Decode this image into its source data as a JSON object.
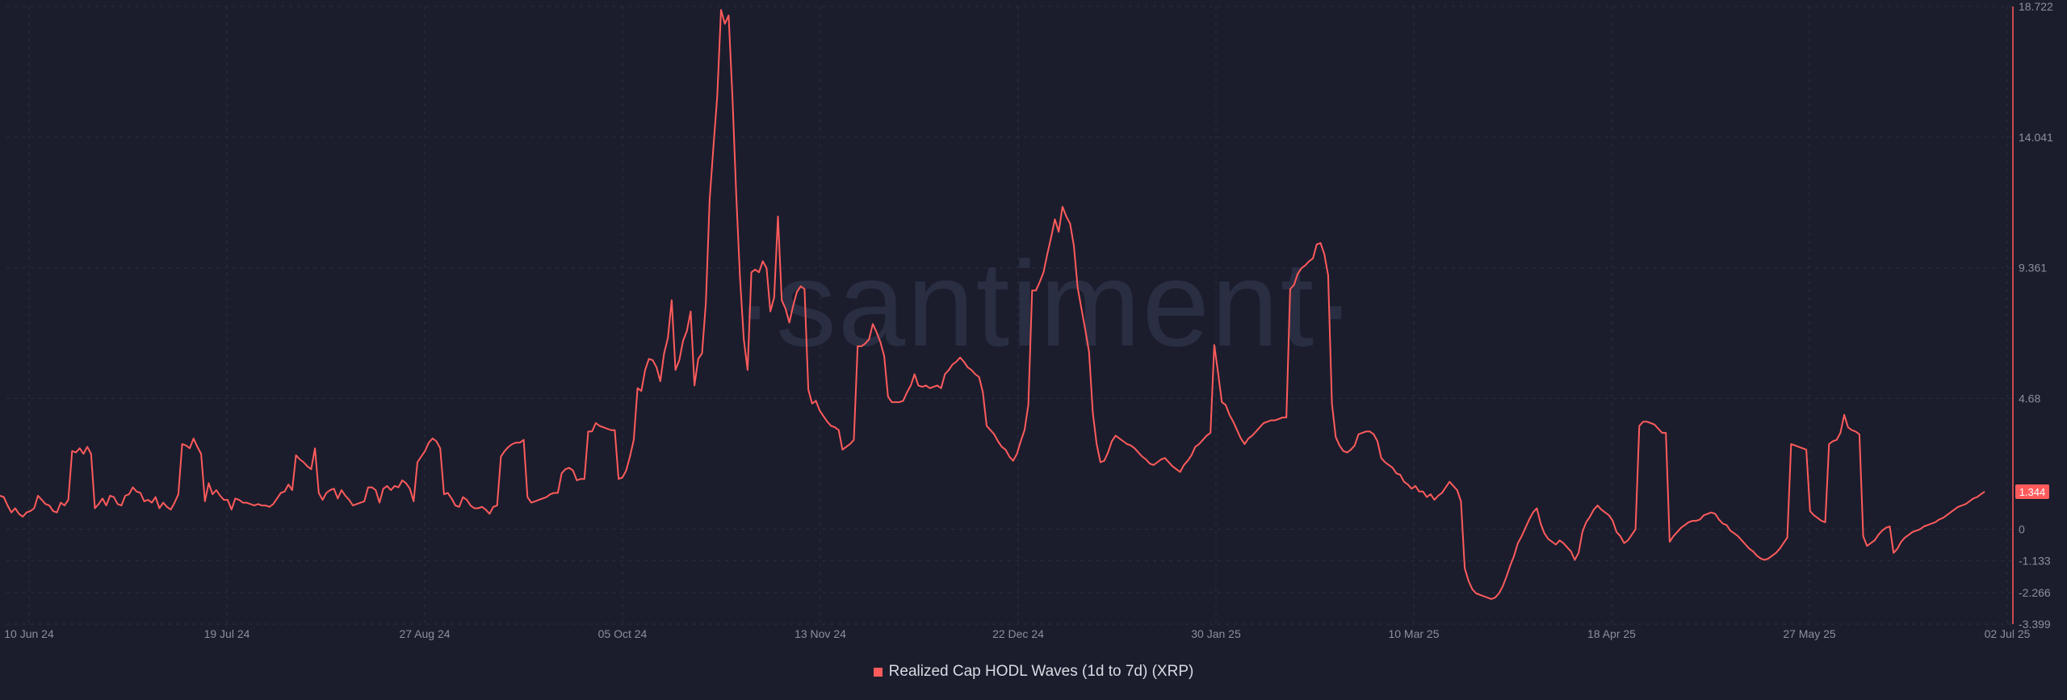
{
  "watermark": "·santiment·",
  "chart_data": {
    "type": "line",
    "title": "",
    "xlabel": "",
    "ylabel": "",
    "ylim": [
      -3.399,
      18.722
    ],
    "y_ticks": [
      "18.722",
      "14.041",
      "9.361",
      "4.68",
      "0",
      "-1.133",
      "-2.266",
      "-3.399"
    ],
    "x_ticks": [
      "10 Jun 24",
      "19 Jul 24",
      "27 Aug 24",
      "05 Oct 24",
      "13 Nov 24",
      "22 Dec 24",
      "30 Jan 25",
      "10 Mar 25",
      "18 Apr 25",
      "27 May 25",
      "02 Jul 25"
    ],
    "current_value_label": "1.344",
    "grid": true,
    "legend_position": "bottom-center",
    "series": [
      {
        "name": "Realized Cap HODL Waves (1d to 7d) (XRP)",
        "color": "#ff5b5b",
        "x_start": "2024-06-10",
        "x_end": "2025-07-02",
        "values": [
          1.2,
          1.15,
          0.85,
          0.6,
          0.75,
          0.55,
          0.45,
          0.6,
          0.65,
          0.75,
          1.2,
          1.05,
          0.9,
          0.85,
          0.65,
          0.6,
          0.95,
          0.85,
          1.05,
          2.8,
          2.75,
          2.9,
          2.7,
          2.95,
          2.7,
          0.75,
          0.9,
          1.1,
          0.85,
          1.2,
          1.15,
          0.9,
          0.85,
          1.2,
          1.25,
          1.5,
          1.35,
          1.3,
          1.0,
          1.05,
          0.95,
          1.15,
          0.75,
          0.95,
          0.8,
          0.7,
          0.95,
          1.25,
          3.05,
          3.0,
          2.9,
          3.25,
          2.95,
          2.7,
          1.0,
          1.65,
          1.25,
          1.4,
          1.2,
          1.05,
          1.05,
          0.7,
          1.1,
          1.05,
          0.95,
          0.95,
          0.9,
          0.85,
          0.9,
          0.85,
          0.85,
          0.8,
          0.9,
          1.1,
          1.3,
          1.35,
          1.6,
          1.4,
          2.65,
          2.5,
          2.4,
          2.25,
          2.15,
          2.9,
          1.3,
          1.05,
          1.3,
          1.4,
          1.45,
          1.1,
          1.4,
          1.2,
          1.05,
          0.85,
          0.9,
          0.95,
          1.0,
          1.5,
          1.5,
          1.4,
          0.95,
          1.45,
          1.55,
          1.4,
          1.55,
          1.5,
          1.75,
          1.65,
          1.45,
          1.0,
          2.4,
          2.6,
          2.8,
          3.1,
          3.25,
          3.15,
          2.9,
          1.25,
          1.3,
          1.1,
          0.85,
          0.8,
          1.15,
          1.05,
          0.85,
          0.75,
          0.75,
          0.8,
          0.7,
          0.55,
          0.8,
          0.85,
          2.6,
          2.8,
          2.95,
          3.05,
          3.1,
          3.1,
          3.2,
          1.15,
          0.95,
          1.0,
          1.05,
          1.1,
          1.15,
          1.25,
          1.3,
          1.3,
          2.0,
          2.15,
          2.2,
          2.1,
          1.75,
          1.8,
          1.8,
          3.5,
          3.5,
          3.8,
          3.7,
          3.65,
          3.6,
          3.55,
          3.55,
          1.8,
          1.85,
          2.1,
          2.6,
          3.2,
          5.05,
          4.95,
          5.7,
          6.1,
          6.05,
          5.8,
          5.3,
          6.3,
          6.85,
          8.2,
          5.7,
          6.05,
          6.75,
          7.1,
          7.8,
          5.15,
          6.1,
          6.3,
          8.1,
          11.8,
          13.7,
          15.5,
          18.6,
          18.1,
          18.4,
          15.5,
          12.0,
          9.0,
          6.8,
          5.7,
          9.2,
          9.3,
          9.2,
          9.6,
          9.35,
          7.8,
          8.3,
          11.2,
          8.2,
          7.9,
          7.4,
          8.0,
          8.5,
          8.7,
          8.6,
          5.0,
          4.5,
          4.6,
          4.25,
          4.05,
          3.85,
          3.7,
          3.65,
          3.55,
          2.85,
          2.95,
          3.05,
          3.2,
          6.55,
          6.55,
          6.65,
          6.8,
          7.35,
          7.05,
          6.7,
          6.2,
          4.75,
          4.55,
          4.55,
          4.55,
          4.6,
          4.9,
          5.15,
          5.55,
          5.15,
          5.1,
          5.15,
          5.05,
          5.1,
          5.15,
          5.05,
          5.55,
          5.7,
          5.9,
          6.0,
          6.15,
          6.0,
          5.8,
          5.7,
          5.55,
          5.45,
          4.9,
          3.7,
          3.55,
          3.4,
          3.15,
          2.95,
          2.85,
          2.6,
          2.45,
          2.7,
          3.15,
          3.55,
          4.45,
          8.55,
          8.55,
          8.85,
          9.2,
          9.85,
          10.45,
          11.1,
          10.65,
          11.55,
          11.2,
          10.95,
          10.15,
          8.65,
          7.9,
          7.15,
          6.35,
          4.15,
          3.05,
          2.4,
          2.45,
          2.75,
          3.15,
          3.35,
          3.25,
          3.15,
          3.05,
          3.0,
          2.9,
          2.75,
          2.6,
          2.5,
          2.35,
          2.3,
          2.4,
          2.5,
          2.55,
          2.4,
          2.25,
          2.15,
          2.05,
          2.3,
          2.45,
          2.65,
          2.95,
          3.05,
          3.2,
          3.35,
          3.45,
          6.6,
          5.6,
          4.55,
          4.45,
          4.1,
          3.85,
          3.55,
          3.25,
          3.05,
          3.25,
          3.35,
          3.5,
          3.65,
          3.8,
          3.85,
          3.9,
          3.9,
          3.95,
          4.0,
          4.0,
          8.6,
          8.75,
          9.15,
          9.35,
          9.45,
          9.6,
          9.7,
          10.2,
          10.25,
          9.85,
          9.1,
          4.5,
          3.3,
          3.0,
          2.8,
          2.75,
          2.85,
          3.0,
          3.4,
          3.45,
          3.5,
          3.5,
          3.4,
          3.15,
          2.55,
          2.4,
          2.3,
          2.2,
          2.0,
          1.95,
          1.7,
          1.6,
          1.45,
          1.55,
          1.35,
          1.35,
          1.15,
          1.25,
          1.05,
          1.2,
          1.3,
          1.5,
          1.7,
          1.55,
          1.4,
          1.0,
          -1.4,
          -1.85,
          -2.15,
          -2.3,
          -2.35,
          -2.4,
          -2.45,
          -2.5,
          -2.45,
          -2.3,
          -2.05,
          -1.7,
          -1.3,
          -0.95,
          -0.5,
          -0.25,
          0.05,
          0.35,
          0.6,
          0.75,
          0.2,
          -0.15,
          -0.35,
          -0.45,
          -0.55,
          -0.4,
          -0.5,
          -0.65,
          -0.8,
          -1.1,
          -0.85,
          -0.1,
          0.25,
          0.45,
          0.7,
          0.85,
          0.7,
          0.6,
          0.5,
          0.3,
          -0.1,
          -0.25,
          -0.5,
          -0.4,
          -0.2,
          0.0,
          3.7,
          3.85,
          3.85,
          3.8,
          3.75,
          3.6,
          3.45,
          3.45,
          -0.45,
          -0.25,
          -0.1,
          0.05,
          0.15,
          0.25,
          0.3,
          0.3,
          0.35,
          0.5,
          0.55,
          0.6,
          0.55,
          0.35,
          0.2,
          0.15,
          -0.05,
          -0.15,
          -0.25,
          -0.4,
          -0.55,
          -0.7,
          -0.8,
          -0.95,
          -1.05,
          -1.1,
          -1.05,
          -0.95,
          -0.85,
          -0.7,
          -0.5,
          -0.3,
          3.05,
          3.0,
          2.95,
          2.9,
          2.85,
          0.65,
          0.5,
          0.4,
          0.3,
          0.25,
          3.05,
          3.15,
          3.2,
          3.45,
          4.1,
          3.65,
          3.55,
          3.5,
          3.4,
          -0.25,
          -0.6,
          -0.5,
          -0.4,
          -0.2,
          -0.05,
          0.05,
          0.1,
          -0.85,
          -0.7,
          -0.45,
          -0.3,
          -0.2,
          -0.1,
          -0.05,
          0.0,
          0.1,
          0.15,
          0.2,
          0.25,
          0.35,
          0.4,
          0.5,
          0.6,
          0.7,
          0.8,
          0.85,
          0.9,
          1.0,
          1.1,
          1.15,
          1.25,
          1.344
        ]
      }
    ]
  }
}
